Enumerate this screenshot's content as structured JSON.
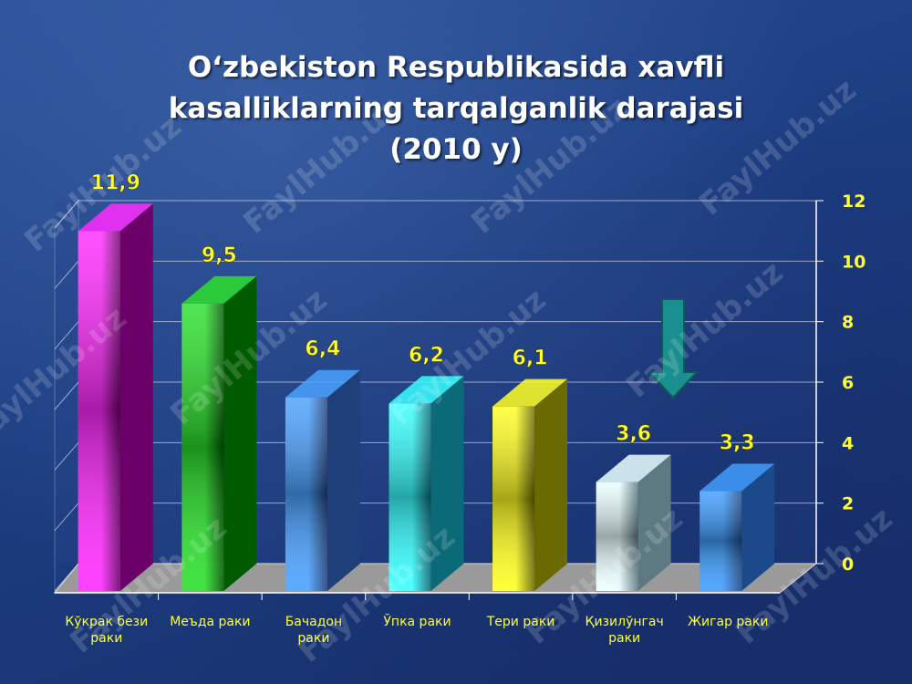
{
  "title_lines": [
    "O‘zbekiston Respublikasida xavfli",
    "kasalliklarning tarqalganlik darajasi",
    "(2010 y)"
  ],
  "watermark": "FaylHub.uz",
  "chart_data": {
    "type": "bar",
    "categories": [
      [
        "Кўкрак бези",
        "раки"
      ],
      [
        "Меъда раки"
      ],
      [
        "Бачадон",
        "раки"
      ],
      [
        "Ўпка раки"
      ],
      [
        "Тери раки"
      ],
      [
        "Қизилўнгач",
        "раки"
      ],
      [
        "Жигар раки"
      ]
    ],
    "values": [
      11.9,
      9.5,
      6.4,
      6.2,
      6.1,
      3.6,
      3.3
    ],
    "data_labels": [
      "11,9",
      "9,5",
      "6,4",
      "6,2",
      "6,1",
      "3,6",
      "3,3"
    ],
    "ylim": [
      0,
      12
    ],
    "yticks": [
      0,
      2,
      4,
      6,
      8,
      10,
      12
    ],
    "y_axis_side": "right",
    "grid": true,
    "style": "3d",
    "colors": [
      [
        "#ff2bff",
        "#6a0068"
      ],
      [
        "#2be02b",
        "#005a00"
      ],
      [
        "#4aa2ff",
        "#1e3f7a"
      ],
      [
        "#38ffff",
        "#0b6a78"
      ],
      [
        "#ffff22",
        "#6a6a00"
      ],
      [
        "#eaffff",
        "#5d7a82"
      ],
      [
        "#3f9dff",
        "#1b4a8a"
      ]
    ],
    "label_color": "#ffff33",
    "category_label_color": "#ffff33"
  }
}
